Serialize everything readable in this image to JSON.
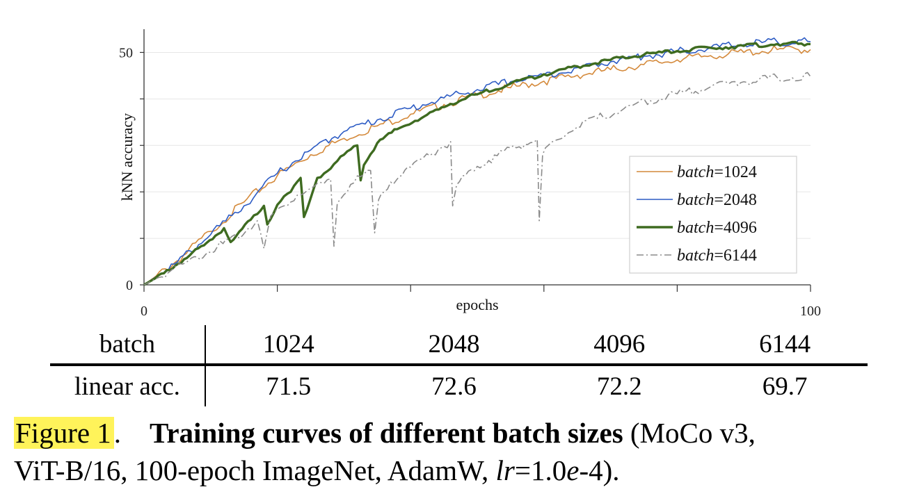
{
  "chart_data": {
    "type": "line",
    "xlabel": "epochs",
    "ylabel": "kNN accuracy",
    "xlim": [
      0,
      100
    ],
    "ylim": [
      0,
      55
    ],
    "x_ticks": [
      0,
      20,
      40,
      60,
      80,
      100
    ],
    "x_tick_labels": [
      "0",
      "",
      "",
      "",
      "",
      "100"
    ],
    "y_ticks": [
      0,
      10,
      20,
      30,
      40,
      50
    ],
    "y_tick_labels": [
      "0",
      "",
      "",
      "",
      "",
      "50"
    ],
    "grid": "horizontal",
    "legend_position": "lower-right",
    "series": [
      {
        "name": "batch=1024",
        "legend_var": "batch",
        "legend_val": "=1024",
        "color": "#d4893a",
        "width": 1.6,
        "dash": "",
        "x": [
          0,
          5,
          10,
          15,
          20,
          25,
          30,
          35,
          40,
          45,
          50,
          55,
          60,
          65,
          70,
          75,
          80,
          85,
          90,
          95,
          100
        ],
        "y": [
          0,
          5.2,
          11.5,
          17.8,
          23.5,
          28.0,
          31.5,
          34.2,
          36.7,
          38.8,
          40.8,
          42.4,
          43.8,
          45.1,
          46.3,
          47.4,
          48.4,
          49.3,
          50.0,
          50.6,
          50.6
        ]
      },
      {
        "name": "batch=2048",
        "legend_var": "batch",
        "legend_val": "=2048",
        "color": "#2c5bc4",
        "width": 1.6,
        "dash": "",
        "x": [
          0,
          5,
          10,
          15,
          20,
          25,
          30,
          35,
          40,
          45,
          50,
          55,
          60,
          65,
          70,
          75,
          80,
          85,
          90,
          95,
          100
        ],
        "y": [
          0,
          4.9,
          10.8,
          17.0,
          24.0,
          29.0,
          33.0,
          35.5,
          38.0,
          40.2,
          42.0,
          43.7,
          45.2,
          46.7,
          48.0,
          49.2,
          50.2,
          51.0,
          51.7,
          52.3,
          52.3
        ]
      },
      {
        "name": "batch=4096",
        "legend_var": "batch",
        "legend_val": "=4096",
        "color": "#3e6b20",
        "width": 3.4,
        "dash": "",
        "x": [
          0,
          3,
          6,
          9,
          12,
          13,
          16,
          18,
          18.5,
          20,
          22,
          23.5,
          24,
          26,
          28,
          30,
          32,
          32.5,
          33,
          35,
          38,
          42,
          46,
          50,
          55,
          60,
          65,
          70,
          75,
          80,
          85,
          90,
          95,
          100
        ],
        "y": [
          0,
          2.5,
          5.5,
          8.5,
          12.2,
          9.2,
          14.0,
          17.0,
          13.0,
          17.2,
          20.0,
          23.0,
          14.6,
          23.0,
          25.0,
          28.0,
          30.0,
          22.5,
          25.8,
          30.5,
          33.5,
          36.2,
          38.9,
          41.0,
          43.3,
          45.3,
          47.0,
          48.4,
          49.5,
          50.3,
          51.0,
          51.4,
          51.8,
          51.8
        ]
      },
      {
        "name": "batch=6144",
        "legend_var": "batch",
        "legend_val": "=6144",
        "color": "#8a8a8a",
        "width": 1.6,
        "dash": "10,4,2,4",
        "x": [
          0,
          4,
          8,
          11,
          14,
          17,
          18,
          19,
          21,
          23,
          25,
          27,
          28,
          28.5,
          29,
          31,
          33,
          34,
          34.6,
          35.2,
          37,
          40,
          42,
          45,
          46,
          46.3,
          46.9,
          50,
          53,
          55,
          58,
          59,
          59.3,
          59.8,
          62,
          65,
          68,
          72,
          76,
          80,
          85,
          90,
          95,
          100
        ],
        "y": [
          0,
          3.0,
          6.0,
          8.2,
          10.3,
          13.8,
          7.8,
          14.8,
          17.0,
          19.3,
          20.8,
          21.8,
          22.8,
          8.3,
          17.6,
          21.6,
          23.8,
          24.6,
          11.2,
          18.3,
          22.1,
          25.3,
          27.5,
          29.8,
          30.8,
          17.0,
          21.5,
          25.5,
          27.8,
          29.5,
          30.6,
          31.3,
          13.8,
          28.0,
          31.2,
          34.0,
          35.8,
          37.9,
          39.6,
          41.1,
          42.6,
          43.7,
          44.6,
          44.8
        ]
      }
    ]
  },
  "table": {
    "row_labels": [
      "batch",
      "linear acc."
    ],
    "batch": [
      "1024",
      "2048",
      "4096",
      "6144"
    ],
    "linear_acc": [
      "71.5",
      "72.6",
      "72.2",
      "69.7"
    ]
  },
  "caption": {
    "label": "Figure 1",
    "dot": ".",
    "title": "Training curves of different batch sizes",
    "line1_rest": " (MoCo v3,",
    "line2_a": "ViT-B/16, 100-epoch ImageNet, AdamW, ",
    "lr_var": "lr",
    "lr_eq": "=1.0",
    "e_var": "e",
    "lr_exp": "-4)."
  },
  "colors": {
    "highlight": "#fff35a",
    "grid": "#e6e6e6",
    "axis": "#333333"
  }
}
